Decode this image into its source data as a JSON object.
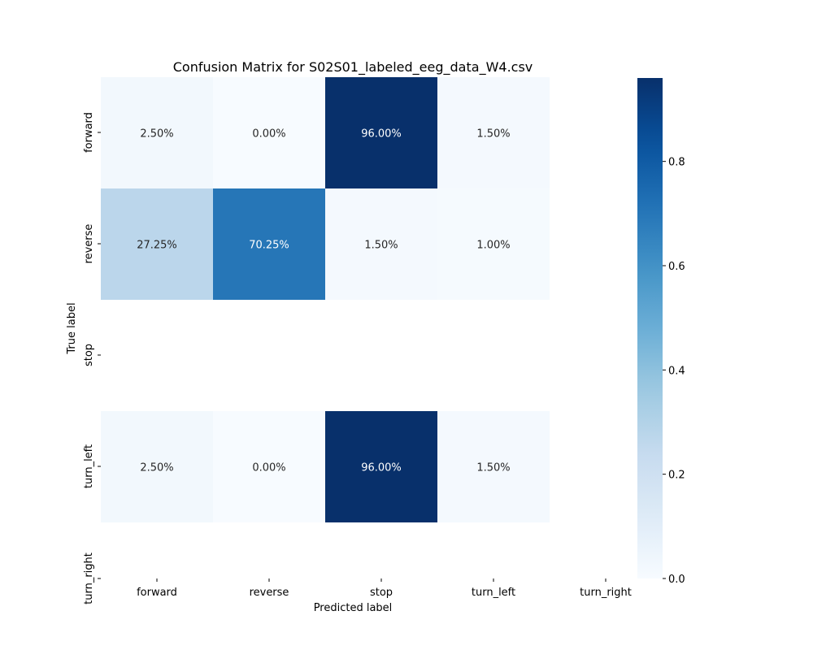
{
  "chart_data": {
    "type": "heatmap",
    "title": "Confusion Matrix for S02S01_labeled_eeg_data_W4.csv",
    "xlabel": "Predicted label",
    "ylabel": "True label",
    "x_categories": [
      "forward",
      "reverse",
      "stop",
      "turn_left",
      "turn_right"
    ],
    "y_categories": [
      "forward",
      "reverse",
      "stop",
      "turn_left",
      "turn_right"
    ],
    "values": [
      [
        0.025,
        0.0,
        0.96,
        0.015,
        null
      ],
      [
        0.2725,
        0.7025,
        0.015,
        0.01,
        null
      ],
      [
        null,
        null,
        null,
        null,
        null
      ],
      [
        0.025,
        0.0,
        0.96,
        0.015,
        null
      ],
      [
        null,
        null,
        null,
        null,
        null
      ]
    ],
    "annotations": [
      [
        "2.50%",
        "0.00%",
        "96.00%",
        "1.50%",
        ""
      ],
      [
        "27.25%",
        "70.25%",
        "1.50%",
        "1.00%",
        ""
      ],
      [
        "",
        "",
        "",
        "",
        ""
      ],
      [
        "2.50%",
        "0.00%",
        "96.00%",
        "1.50%",
        ""
      ],
      [
        "",
        "",
        "",
        "",
        ""
      ]
    ],
    "colormap": "Blues",
    "colorbar": {
      "range": [
        0.0,
        0.96
      ],
      "ticks": [
        0.0,
        0.2,
        0.4,
        0.6,
        0.8
      ],
      "tick_labels": [
        "0.0",
        "0.2",
        "0.4",
        "0.6",
        "0.8"
      ]
    },
    "grid": false
  }
}
